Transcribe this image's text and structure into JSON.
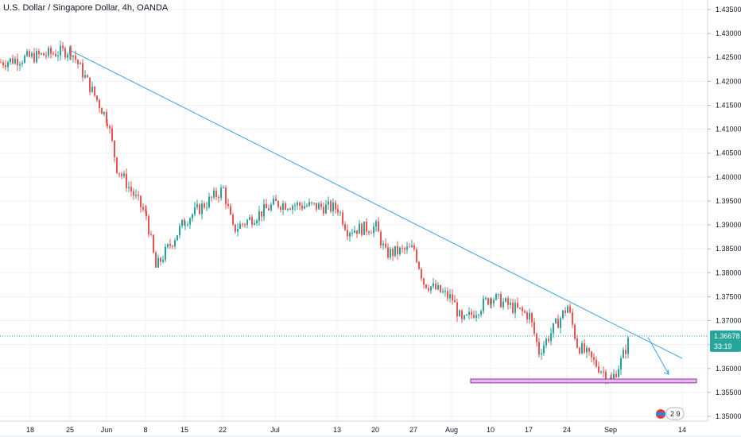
{
  "header": {
    "title": "U.S. Dollar / Singapore Dollar, 4h, OANDA"
  },
  "colors": {
    "up": "#26a69a",
    "down": "#ef5350",
    "trendline": "#3ca3dc",
    "zone_fill": "#e1bee7",
    "zone_border": "#9c27b0",
    "grid": "#eef2f6",
    "last_price_bg": "#26a69a"
  },
  "price_axis": {
    "labels": [
      "1.43500",
      "1.43000",
      "1.42500",
      "1.42000",
      "1.41500",
      "1.41000",
      "1.40500",
      "1.40000",
      "1.39500",
      "1.39000",
      "1.38500",
      "1.38000",
      "1.37500",
      "1.37000",
      "1.36500",
      "1.36000",
      "1.35500",
      "1.35000"
    ],
    "current_price": "1.36678",
    "countdown": "33:19"
  },
  "time_axis": {
    "labels": [
      "18",
      "25",
      "Jun",
      "8",
      "15",
      "22",
      "Jul",
      "13",
      "20",
      "27",
      "Aug",
      "10",
      "17",
      "24",
      "Sep",
      "14"
    ]
  },
  "badge": {
    "label": "2 9"
  },
  "chart_data": {
    "type": "candlestick",
    "symbol": "USD/SGD",
    "interval": "4h",
    "source": "OANDA",
    "ylim": [
      1.35,
      1.435
    ],
    "x_ticks": [
      "18",
      "25",
      "Jun",
      "8",
      "15",
      "22",
      "Jul",
      "13",
      "20",
      "27",
      "Aug",
      "10",
      "17",
      "24",
      "Sep",
      "14"
    ],
    "trend_points": [
      [
        "18",
        1.424
      ],
      [
        "25",
        1.4265
      ],
      [
        "Jun",
        1.412
      ],
      [
        "Jun",
        1.402
      ],
      [
        "8",
        1.392
      ],
      [
        "8",
        1.381
      ],
      [
        "15",
        1.391
      ],
      [
        "22",
        1.3975
      ],
      [
        "22",
        1.389
      ],
      [
        "Jul",
        1.3945
      ],
      [
        "13",
        1.3935
      ],
      [
        "13",
        1.389
      ],
      [
        "20",
        1.3895
      ],
      [
        "20",
        1.384
      ],
      [
        "27",
        1.385
      ],
      [
        "27",
        1.378
      ],
      [
        "Aug",
        1.3745
      ],
      [
        "Aug",
        1.3695
      ],
      [
        "10",
        1.375
      ],
      [
        "17",
        1.371
      ],
      [
        "17",
        1.3635
      ],
      [
        "24",
        1.373
      ],
      [
        "24",
        1.365
      ],
      [
        "Sep",
        1.3575
      ],
      [
        "Sep",
        1.3615
      ],
      [
        "Sep",
        1.3668
      ]
    ],
    "descending_trendline": {
      "start": [
        "25",
        1.4265
      ],
      "end": [
        "14",
        1.3621
      ]
    },
    "support_zone": {
      "low": 1.357,
      "high": 1.3578,
      "from": "Aug",
      "to": "14"
    },
    "projection_arrow": {
      "from": 1.3665,
      "to": 1.3588
    },
    "last_price": 1.36678
  }
}
